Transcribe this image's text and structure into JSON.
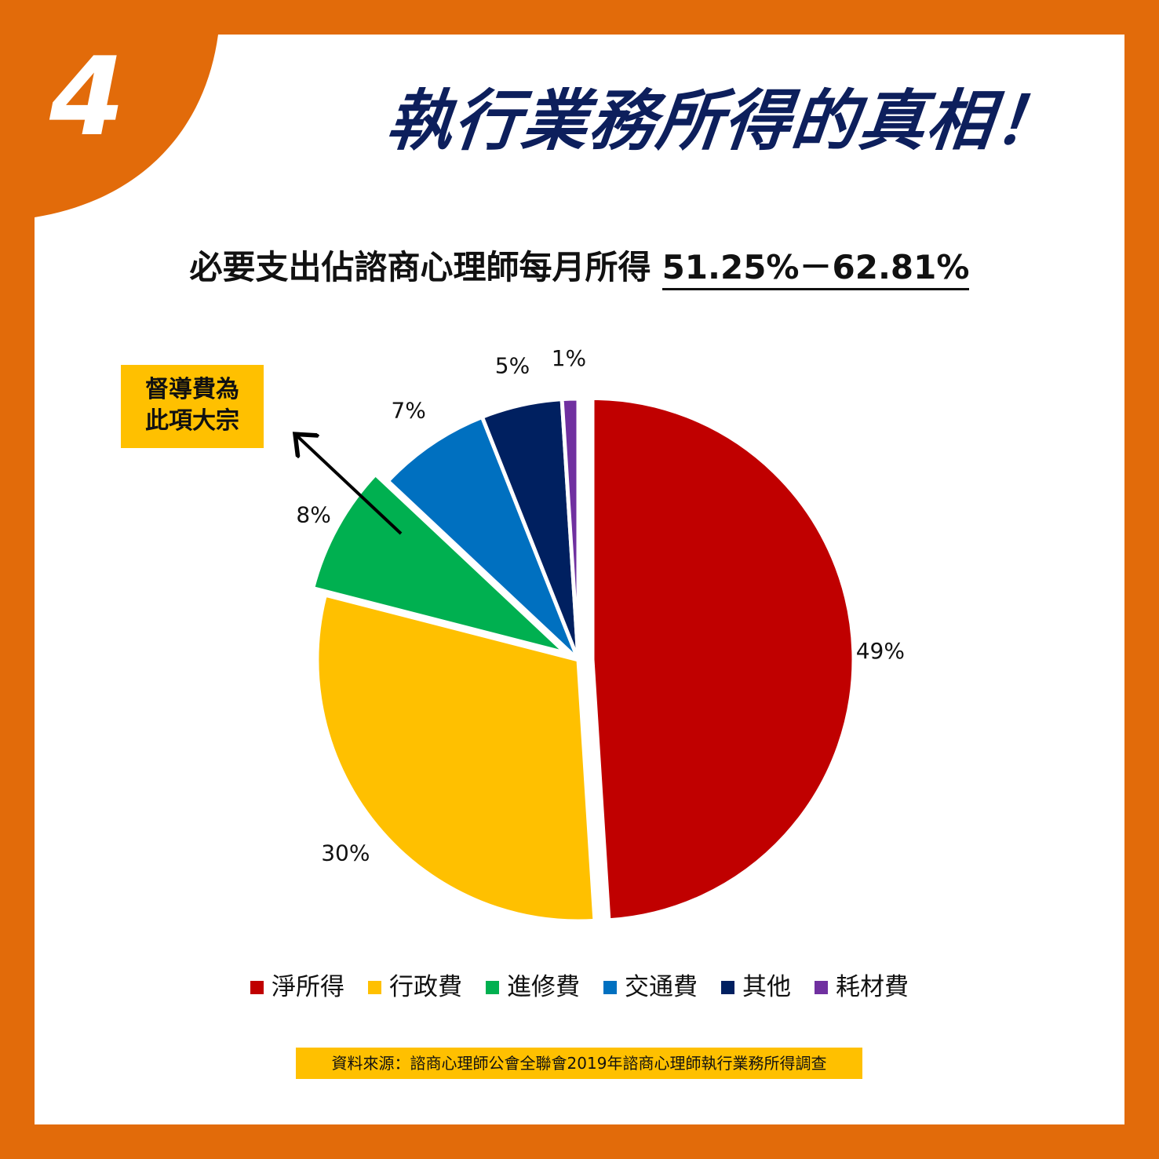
{
  "header": {
    "badge_number": "4",
    "title": "執行業務所得的真相！"
  },
  "subtitle": {
    "text": "必要支出佔諮商心理師每月所得",
    "range": "51.25%－62.81%"
  },
  "callout": {
    "line1": "督導費為",
    "line2": "此項大宗"
  },
  "source": {
    "text": "資料來源：諮商心理師公會全聯會2019年諮商心理師執行業務所得調查"
  },
  "colors": {
    "frame": "#e26b0a",
    "title": "#0d1f5c",
    "highlight": "#ffc000"
  },
  "chart_data": {
    "type": "pie",
    "title": "",
    "slices": [
      {
        "label": "淨所得",
        "value": 49,
        "value_label": "49%",
        "color": "#c00000",
        "exploded": true
      },
      {
        "label": "行政費",
        "value": 30,
        "value_label": "30%",
        "color": "#ffc000",
        "exploded": false
      },
      {
        "label": "進修費",
        "value": 8,
        "value_label": "8%",
        "color": "#00b050",
        "exploded": true
      },
      {
        "label": "交通費",
        "value": 7,
        "value_label": "7%",
        "color": "#0070c0",
        "exploded": false
      },
      {
        "label": "其他",
        "value": 5,
        "value_label": "5%",
        "color": "#002060",
        "exploded": false
      },
      {
        "label": "耗材費",
        "value": 1,
        "value_label": "1%",
        "color": "#7030a0",
        "exploded": false
      }
    ],
    "start_angle_deg": 0,
    "direction": "clockwise",
    "legend_position": "bottom"
  }
}
